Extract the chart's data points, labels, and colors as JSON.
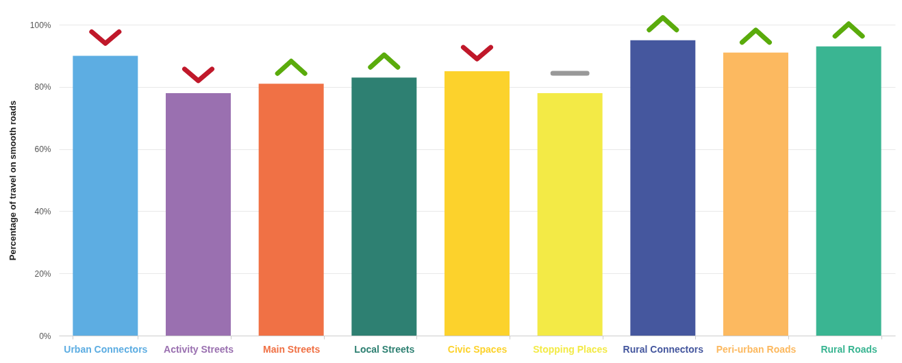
{
  "chart_data": {
    "type": "bar",
    "ylabel": "Percentage of travel on smooth roads",
    "categories": [
      "Urban Connectors",
      "Activity Streets",
      "Main Streets",
      "Local Streets",
      "Civic Spaces",
      "Stopping Places",
      "Rural Connectors",
      "Peri-urban Roads",
      "Rural Roads"
    ],
    "values": [
      90,
      78,
      81,
      83,
      85,
      78,
      95,
      91,
      93
    ],
    "colors": [
      "#5dade2",
      "#9a70b0",
      "#f07145",
      "#2e8072",
      "#fcd22c",
      "#f3ea46",
      "#45579e",
      "#fcb960",
      "#3ab592"
    ],
    "ylim": [
      0,
      100
    ],
    "yticks": [
      {
        "value": 0,
        "label": "0%"
      },
      {
        "value": 20,
        "label": "20%"
      },
      {
        "value": 40,
        "label": "40%"
      },
      {
        "value": 60,
        "label": "60%"
      },
      {
        "value": 80,
        "label": "80%"
      },
      {
        "value": 100,
        "label": "100%"
      }
    ],
    "grid": "y",
    "legend": false
  }
}
